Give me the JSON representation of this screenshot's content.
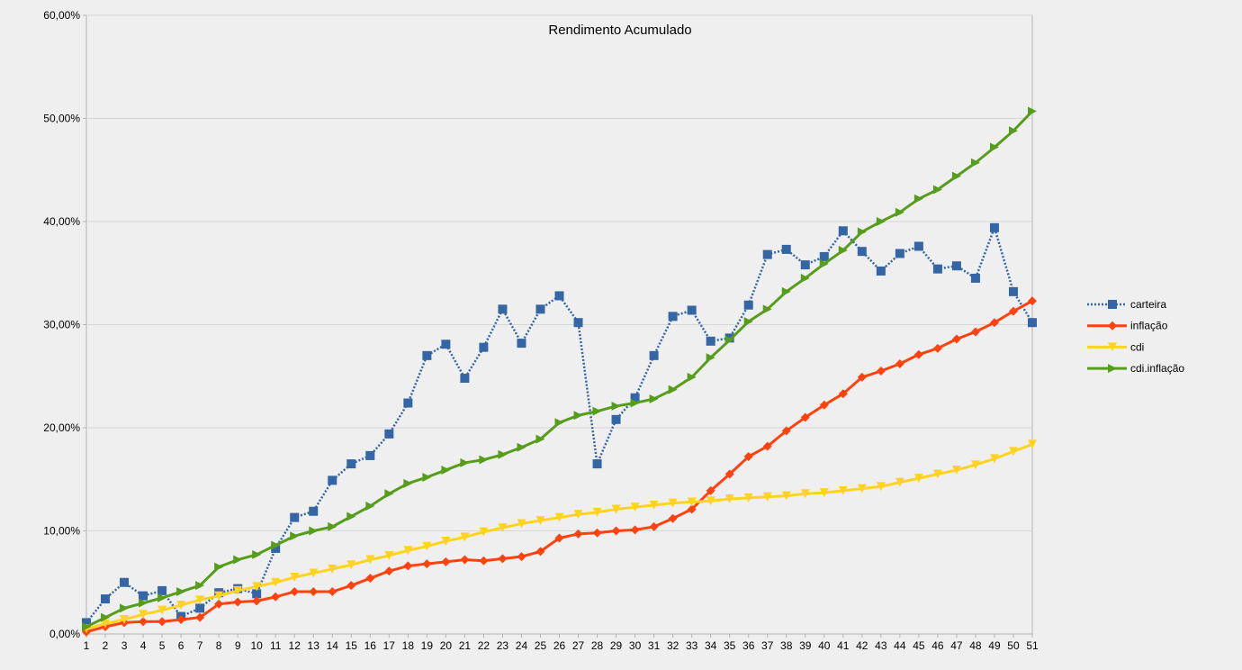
{
  "chart_data": {
    "type": "line",
    "title": "Rendimento Acumulado",
    "xlabel": "",
    "ylabel": "",
    "ylim": [
      0,
      0.6
    ],
    "ytick_values": [
      0,
      0.1,
      0.2,
      0.3,
      0.4,
      0.5,
      0.6
    ],
    "ytick_labels": [
      "0,00%",
      "10,00%",
      "20,00%",
      "30,00%",
      "40,00%",
      "50,00%",
      "60,00%"
    ],
    "grid": true,
    "legend_position": "right",
    "categories": [
      "1",
      "2",
      "3",
      "4",
      "5",
      "6",
      "7",
      "8",
      "9",
      "10",
      "11",
      "12",
      "13",
      "14",
      "15",
      "16",
      "17",
      "18",
      "19",
      "20",
      "21",
      "22",
      "23",
      "24",
      "25",
      "26",
      "27",
      "28",
      "29",
      "30",
      "31",
      "32",
      "33",
      "34",
      "35",
      "36",
      "37",
      "38",
      "39",
      "40",
      "41",
      "42",
      "43",
      "44",
      "45",
      "46",
      "47",
      "48",
      "49",
      "50",
      "51"
    ],
    "series": [
      {
        "name": "carteira",
        "color": "#3465a4",
        "line_style": "dotted",
        "marker": "square",
        "values": [
          0.011,
          0.034,
          0.05,
          0.037,
          0.042,
          0.017,
          0.025,
          0.04,
          0.044,
          0.039,
          0.083,
          0.113,
          0.119,
          0.149,
          0.165,
          0.173,
          0.194,
          0.224,
          0.27,
          0.281,
          0.248,
          0.278,
          0.315,
          0.282,
          0.315,
          0.328,
          0.302,
          0.165,
          0.208,
          0.229,
          0.27,
          0.308,
          0.314,
          0.284,
          0.287,
          0.319,
          0.368,
          0.373,
          0.358,
          0.366,
          0.391,
          0.371,
          0.352,
          0.369,
          0.376,
          0.354,
          0.357,
          0.345,
          0.394,
          0.332,
          0.302
        ]
      },
      {
        "name": "inflação",
        "color": "#ff420e",
        "line_style": "solid",
        "marker": "diamond",
        "values": [
          0.002,
          0.007,
          0.011,
          0.012,
          0.012,
          0.014,
          0.016,
          0.029,
          0.031,
          0.032,
          0.036,
          0.041,
          0.041,
          0.041,
          0.047,
          0.054,
          0.061,
          0.066,
          0.068,
          0.07,
          0.072,
          0.071,
          0.073,
          0.075,
          0.08,
          0.093,
          0.097,
          0.098,
          0.1,
          0.101,
          0.104,
          0.112,
          0.121,
          0.139,
          0.155,
          0.172,
          0.182,
          0.197,
          0.21,
          0.222,
          0.233,
          0.249,
          0.255,
          0.262,
          0.271,
          0.277,
          0.286,
          0.293,
          0.302,
          0.313,
          0.323
        ]
      },
      {
        "name": "cdi",
        "color": "#ffd320",
        "line_style": "solid",
        "marker": "triangle-down",
        "values": [
          0.005,
          0.01,
          0.014,
          0.019,
          0.023,
          0.028,
          0.033,
          0.037,
          0.042,
          0.046,
          0.05,
          0.055,
          0.059,
          0.063,
          0.067,
          0.072,
          0.076,
          0.081,
          0.085,
          0.09,
          0.094,
          0.099,
          0.103,
          0.107,
          0.11,
          0.113,
          0.116,
          0.118,
          0.121,
          0.123,
          0.125,
          0.127,
          0.128,
          0.129,
          0.131,
          0.132,
          0.133,
          0.134,
          0.136,
          0.137,
          0.139,
          0.141,
          0.143,
          0.147,
          0.151,
          0.155,
          0.159,
          0.164,
          0.17,
          0.177,
          0.184
        ]
      },
      {
        "name": "cdi.inflação",
        "color": "#579d1c",
        "line_style": "solid",
        "marker": "triangle-right",
        "values": [
          0.007,
          0.016,
          0.025,
          0.03,
          0.035,
          0.041,
          0.047,
          0.065,
          0.072,
          0.077,
          0.086,
          0.095,
          0.1,
          0.104,
          0.114,
          0.124,
          0.136,
          0.146,
          0.152,
          0.159,
          0.166,
          0.169,
          0.174,
          0.181,
          0.189,
          0.205,
          0.212,
          0.216,
          0.221,
          0.224,
          0.228,
          0.237,
          0.249,
          0.268,
          0.285,
          0.303,
          0.315,
          0.332,
          0.345,
          0.359,
          0.372,
          0.39,
          0.4,
          0.409,
          0.422,
          0.431,
          0.444,
          0.457,
          0.472,
          0.488,
          0.507
        ]
      }
    ]
  }
}
